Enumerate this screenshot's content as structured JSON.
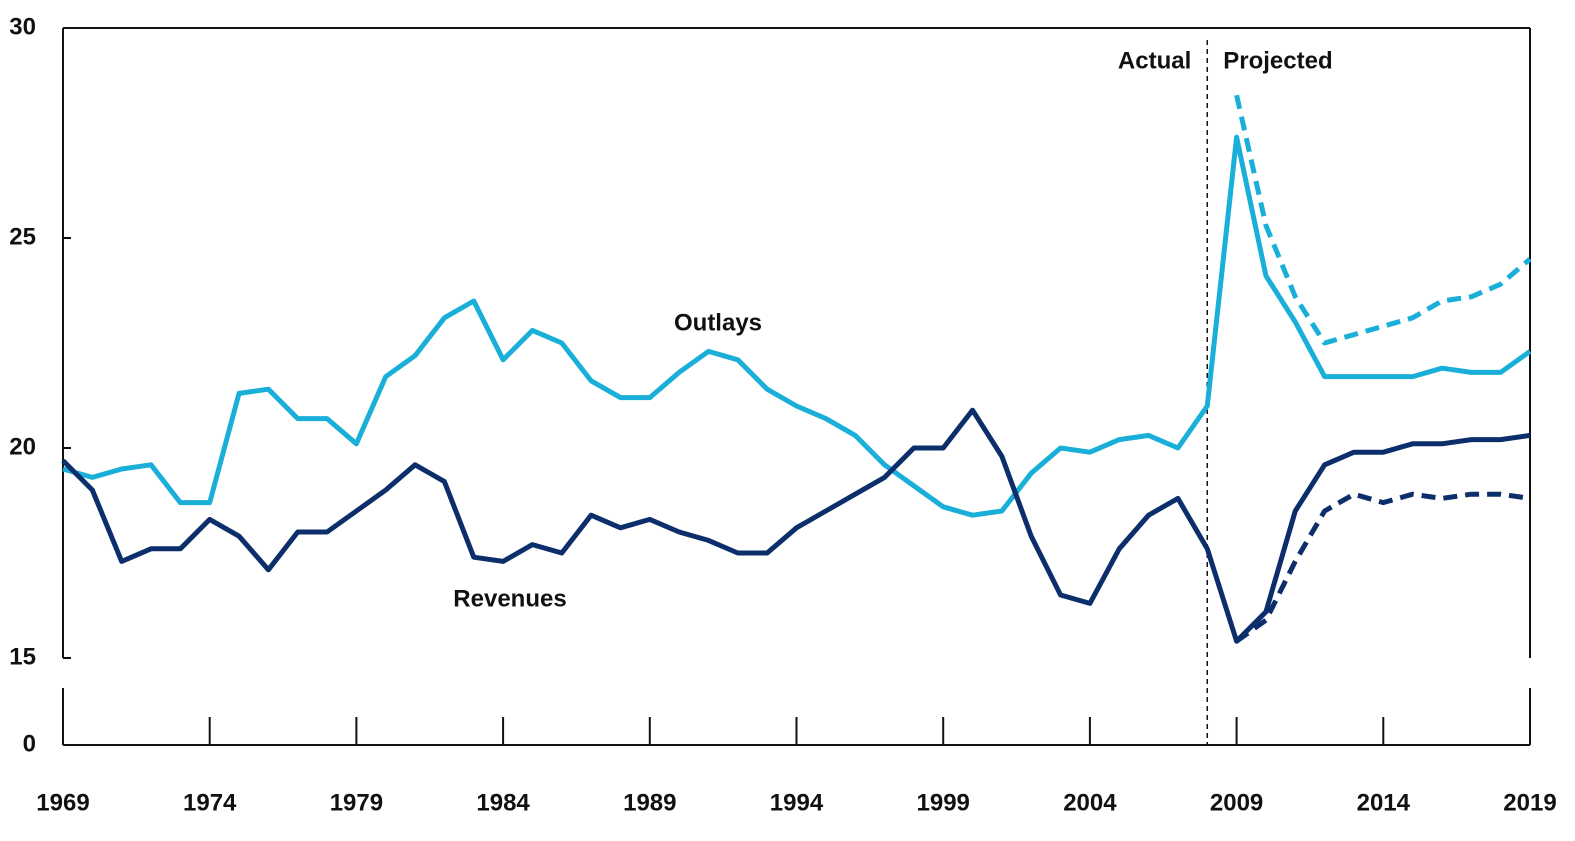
{
  "chart_data": {
    "type": "line",
    "annotations": [
      "Actual",
      "Projected"
    ],
    "divider_x": 2008,
    "xlim": [
      1969,
      2019
    ],
    "xticks": [
      1969,
      1974,
      1979,
      1984,
      1989,
      1994,
      1999,
      2004,
      2009,
      2014,
      2019
    ],
    "ylim": [
      0,
      30
    ],
    "axis_break": [
      0,
      15
    ],
    "yticks": [
      0,
      15,
      20,
      25,
      30
    ],
    "x": [
      1969,
      1970,
      1971,
      1972,
      1973,
      1974,
      1975,
      1976,
      1977,
      1978,
      1979,
      1980,
      1981,
      1982,
      1983,
      1984,
      1985,
      1986,
      1987,
      1988,
      1989,
      1990,
      1991,
      1992,
      1993,
      1994,
      1995,
      1996,
      1997,
      1998,
      1999,
      2000,
      2001,
      2002,
      2003,
      2004,
      2005,
      2006,
      2007,
      2008,
      2009,
      2010,
      2011,
      2012,
      2013,
      2014,
      2015,
      2016,
      2017,
      2018,
      2019
    ],
    "series": [
      {
        "name": "Outlays",
        "color": "#1aafd8",
        "dashed": false,
        "values": [
          19.5,
          19.3,
          19.5,
          19.6,
          18.7,
          18.7,
          21.3,
          21.4,
          20.7,
          20.7,
          20.1,
          21.7,
          22.2,
          23.1,
          23.5,
          22.1,
          22.8,
          22.5,
          21.6,
          21.2,
          21.2,
          21.8,
          22.3,
          22.1,
          21.4,
          21.0,
          20.7,
          20.3,
          19.6,
          19.1,
          18.6,
          18.4,
          18.5,
          19.4,
          20.0,
          19.9,
          20.2,
          20.3,
          20.0,
          21.0,
          27.4,
          24.1,
          23.0,
          21.7,
          21.7,
          21.7,
          21.7,
          21.9,
          21.8,
          21.8,
          22.3
        ]
      },
      {
        "name": "Revenues",
        "color": "#0c2f6b",
        "dashed": false,
        "values": [
          19.7,
          19.0,
          17.3,
          17.6,
          17.6,
          18.3,
          17.9,
          17.1,
          18.0,
          18.0,
          18.5,
          19.0,
          19.6,
          19.2,
          17.4,
          17.3,
          17.7,
          17.5,
          18.4,
          18.1,
          18.3,
          18.0,
          17.8,
          17.5,
          17.5,
          18.1,
          18.5,
          18.9,
          19.3,
          20.0,
          20.0,
          20.9,
          19.8,
          17.9,
          16.5,
          16.3,
          17.6,
          18.4,
          18.8,
          17.6,
          15.4,
          16.1,
          18.5,
          19.6,
          19.9,
          19.9,
          20.1,
          20.1,
          20.2,
          20.2,
          20.3
        ]
      },
      {
        "color": "#1aafd8",
        "dashed": true,
        "x": [
          2009,
          2010,
          2011,
          2012,
          2013,
          2014,
          2015,
          2016,
          2017,
          2018,
          2019
        ],
        "values": [
          28.4,
          25.3,
          23.6,
          22.5,
          22.7,
          22.9,
          23.1,
          23.5,
          23.6,
          23.9,
          24.5
        ]
      },
      {
        "color": "#0c2f6b",
        "dashed": true,
        "x": [
          2009,
          2010,
          2011,
          2012,
          2013,
          2014,
          2015,
          2016,
          2017,
          2018,
          2019
        ],
        "values": [
          15.4,
          15.9,
          17.3,
          18.5,
          18.9,
          18.7,
          18.9,
          18.8,
          18.9,
          18.9,
          18.8
        ]
      }
    ]
  }
}
